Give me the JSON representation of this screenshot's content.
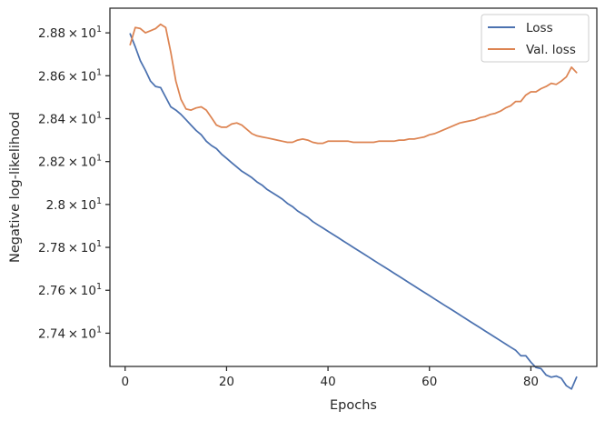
{
  "chart_data": {
    "type": "line",
    "xlabel": "Epochs",
    "ylabel": "Negative log-likelihood",
    "xlim": [
      -3,
      93
    ],
    "ylim": [
      27.245,
      28.915
    ],
    "x_ticks": [
      0,
      20,
      40,
      60,
      80
    ],
    "y_ticks": [
      {
        "value": 27.4,
        "mantissa": "2.74",
        "base": "10",
        "exp": "1"
      },
      {
        "value": 27.6,
        "mantissa": "2.76",
        "base": "10",
        "exp": "1"
      },
      {
        "value": 27.8,
        "mantissa": "2.78",
        "base": "10",
        "exp": "1"
      },
      {
        "value": 28.0,
        "mantissa": "2.8",
        "base": "10",
        "exp": "1"
      },
      {
        "value": 28.2,
        "mantissa": "2.82",
        "base": "10",
        "exp": "1"
      },
      {
        "value": 28.4,
        "mantissa": "2.84",
        "base": "10",
        "exp": "1"
      },
      {
        "value": 28.6,
        "mantissa": "2.86",
        "base": "10",
        "exp": "1"
      },
      {
        "value": 28.8,
        "mantissa": "2.88",
        "base": "10",
        "exp": "1"
      }
    ],
    "grid": false,
    "legend_position": "top-right",
    "series": [
      {
        "name": "Loss",
        "color": "#4c72b0",
        "x": [
          1,
          2,
          3,
          4,
          5,
          6,
          7,
          8,
          9,
          10,
          11,
          12,
          13,
          14,
          15,
          16,
          17,
          18,
          19,
          20,
          21,
          22,
          23,
          24,
          25,
          26,
          27,
          28,
          29,
          30,
          31,
          32,
          33,
          34,
          35,
          36,
          37,
          38,
          39,
          40,
          41,
          42,
          43,
          44,
          45,
          46,
          47,
          48,
          49,
          50,
          51,
          52,
          53,
          54,
          55,
          56,
          57,
          58,
          59,
          60,
          61,
          62,
          63,
          64,
          65,
          66,
          67,
          68,
          69,
          70,
          71,
          72,
          73,
          74,
          75,
          76,
          77,
          78,
          79,
          80,
          81,
          82,
          83,
          84,
          85,
          86,
          87,
          88,
          89
        ],
        "values": [
          28.795,
          28.735,
          28.67,
          28.625,
          28.575,
          28.55,
          28.545,
          28.5,
          28.455,
          28.44,
          28.42,
          28.395,
          28.37,
          28.345,
          28.325,
          28.295,
          28.275,
          28.26,
          28.235,
          28.215,
          28.195,
          28.175,
          28.155,
          28.14,
          28.125,
          28.105,
          28.09,
          28.07,
          28.055,
          28.04,
          28.025,
          28.005,
          27.99,
          27.97,
          27.955,
          27.94,
          27.92,
          27.905,
          27.89,
          27.875,
          27.86,
          27.845,
          27.83,
          27.815,
          27.8,
          27.785,
          27.77,
          27.755,
          27.74,
          27.725,
          27.71,
          27.695,
          27.68,
          27.665,
          27.65,
          27.635,
          27.62,
          27.605,
          27.59,
          27.575,
          27.56,
          27.545,
          27.53,
          27.515,
          27.5,
          27.485,
          27.47,
          27.455,
          27.44,
          27.425,
          27.41,
          27.395,
          27.38,
          27.365,
          27.35,
          27.335,
          27.32,
          27.295,
          27.295,
          27.265,
          27.24,
          27.235,
          27.205,
          27.195,
          27.2,
          27.19,
          27.155,
          27.14,
          27.195
        ]
      },
      {
        "name": "Val. loss",
        "color": "#dd8452",
        "x": [
          1,
          2,
          3,
          4,
          5,
          6,
          7,
          8,
          9,
          10,
          11,
          12,
          13,
          14,
          15,
          16,
          17,
          18,
          19,
          20,
          21,
          22,
          23,
          24,
          25,
          26,
          27,
          28,
          29,
          30,
          31,
          32,
          33,
          34,
          35,
          36,
          37,
          38,
          39,
          40,
          41,
          42,
          43,
          44,
          45,
          46,
          47,
          48,
          49,
          50,
          51,
          52,
          53,
          54,
          55,
          56,
          57,
          58,
          59,
          60,
          61,
          62,
          63,
          64,
          65,
          66,
          67,
          68,
          69,
          70,
          71,
          72,
          73,
          74,
          75,
          76,
          77,
          78,
          79,
          80,
          81,
          82,
          83,
          84,
          85,
          86,
          87,
          88,
          89
        ],
        "values": [
          28.745,
          28.825,
          28.82,
          28.8,
          28.81,
          28.82,
          28.84,
          28.825,
          28.71,
          28.575,
          28.49,
          28.445,
          28.44,
          28.45,
          28.455,
          28.44,
          28.405,
          28.37,
          28.36,
          28.36,
          28.375,
          28.38,
          28.37,
          28.35,
          28.33,
          28.32,
          28.315,
          28.31,
          28.305,
          28.3,
          28.295,
          28.29,
          28.29,
          28.3,
          28.305,
          28.3,
          28.29,
          28.285,
          28.285,
          28.295,
          28.295,
          28.295,
          28.295,
          28.295,
          28.29,
          28.29,
          28.29,
          28.29,
          28.29,
          28.295,
          28.295,
          28.295,
          28.295,
          28.3,
          28.3,
          28.305,
          28.305,
          28.31,
          28.315,
          28.325,
          28.33,
          28.34,
          28.35,
          28.36,
          28.37,
          28.38,
          28.385,
          28.39,
          28.395,
          28.405,
          28.41,
          28.42,
          28.425,
          28.435,
          28.45,
          28.46,
          28.48,
          28.48,
          28.51,
          28.525,
          28.525,
          28.54,
          28.55,
          28.565,
          28.56,
          28.575,
          28.595,
          28.64,
          28.615
        ]
      }
    ]
  }
}
